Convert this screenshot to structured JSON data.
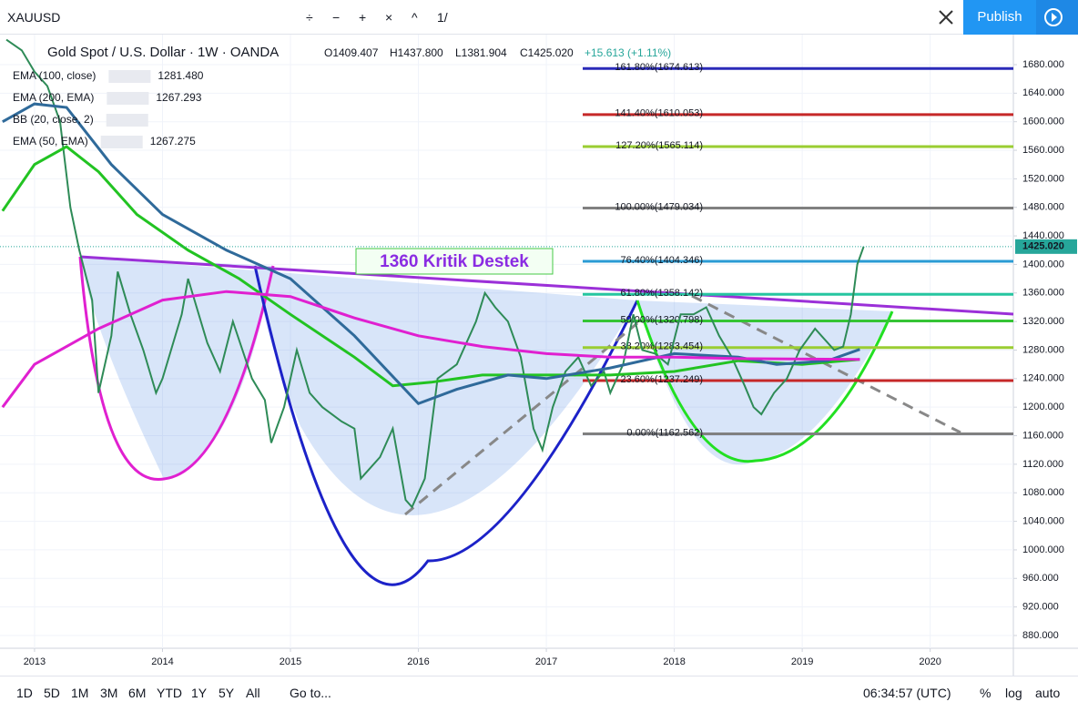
{
  "header": {
    "symbol": "XAUUSD",
    "tools": [
      "÷",
      "−",
      "+",
      "×",
      "^",
      "1/"
    ],
    "publish": "Publish"
  },
  "footer": {
    "ranges": [
      "1D",
      "5D",
      "1M",
      "3M",
      "6M",
      "YTD",
      "1Y",
      "5Y",
      "All"
    ],
    "goto": "Go to...",
    "clock": "06:34:57 (UTC)",
    "options": [
      "%",
      "log",
      "auto"
    ]
  },
  "chart_data": {
    "type": "line",
    "title": "Gold Spot / U.S. Dollar · 1W · OANDA",
    "ohlc": [
      "O1409.407",
      "H1437.800",
      "L1381.904",
      "C1425.020",
      "+15.613 (+1.11%)"
    ],
    "indicators": [
      {
        "name": "EMA (100, close)",
        "value": "1281.480",
        "color": "#2f6a9a"
      },
      {
        "name": "EMA (200, EMA)",
        "value": "1267.293",
        "color": "#e020d0"
      },
      {
        "name": "BB (20, close, 2)",
        "value": null,
        "color": "#888888"
      },
      {
        "name": "EMA (50, EMA)",
        "value": "1267.275",
        "color": "#22c322"
      }
    ],
    "annotation": "1360 Kritik Destek",
    "last_price": {
      "value": 1425.02,
      "label": "1425.020"
    },
    "xlim": [
      2012.73,
      2020.65
    ],
    "xticks": [
      2013,
      2014,
      2015,
      2016,
      2017,
      2018,
      2019,
      2020
    ],
    "ylim": [
      862.1,
      1722.1
    ],
    "yticks": [
      {
        "value": 880,
        "label": "880.000"
      },
      {
        "value": 920,
        "label": "920.000"
      },
      {
        "value": 960,
        "label": "960.000"
      },
      {
        "value": 1000,
        "label": "1000.000"
      },
      {
        "value": 1040,
        "label": "1040.000"
      },
      {
        "value": 1080,
        "label": "1080.000"
      },
      {
        "value": 1120,
        "label": "1120.000"
      },
      {
        "value": 1160,
        "label": "1160.000"
      },
      {
        "value": 1200,
        "label": "1200.000"
      },
      {
        "value": 1240,
        "label": "1240.000"
      },
      {
        "value": 1280,
        "label": "1280.000"
      },
      {
        "value": 1320,
        "label": "1320.000"
      },
      {
        "value": 1360,
        "label": "1360.000"
      },
      {
        "value": 1400,
        "label": "1400.000"
      },
      {
        "value": 1440,
        "label": "1440.000"
      },
      {
        "value": 1480,
        "label": "1480.000"
      },
      {
        "value": 1520,
        "label": "1520.000"
      },
      {
        "value": 1560,
        "label": "1560.000"
      },
      {
        "value": 1600,
        "label": "1600.000"
      },
      {
        "value": 1640,
        "label": "1640.000"
      },
      {
        "value": 1680,
        "label": "1680.000"
      }
    ],
    "series": [
      {
        "name": "XAUUSD",
        "color": "#2e8b57",
        "x": [
          2012.78,
          2012.9,
          2013.0,
          2013.1,
          2013.2,
          2013.28,
          2013.35,
          2013.45,
          2013.5,
          2013.6,
          2013.65,
          2013.75,
          2013.85,
          2013.95,
          2014.0,
          2014.15,
          2014.2,
          2014.35,
          2014.45,
          2014.55,
          2014.7,
          2014.8,
          2014.85,
          2014.95,
          2015.05,
          2015.15,
          2015.25,
          2015.4,
          2015.5,
          2015.55,
          2015.7,
          2015.8,
          2015.9,
          2015.95,
          2016.05,
          2016.15,
          2016.3,
          2016.45,
          2016.52,
          2016.6,
          2016.7,
          2016.8,
          2016.9,
          2016.97,
          2017.05,
          2017.15,
          2017.25,
          2017.35,
          2017.45,
          2017.5,
          2017.6,
          2017.68,
          2017.75,
          2017.85,
          2017.95,
          2018.05,
          2018.15,
          2018.25,
          2018.35,
          2018.45,
          2018.55,
          2018.62,
          2018.68,
          2018.78,
          2018.88,
          2018.98,
          2019.1,
          2019.15,
          2019.25,
          2019.32,
          2019.38,
          2019.43,
          2019.48
        ],
        "values": [
          1715,
          1700,
          1670,
          1650,
          1600,
          1480,
          1420,
          1350,
          1220,
          1300,
          1390,
          1330,
          1280,
          1220,
          1240,
          1330,
          1380,
          1290,
          1250,
          1320,
          1240,
          1210,
          1150,
          1200,
          1280,
          1220,
          1200,
          1180,
          1170,
          1100,
          1130,
          1170,
          1070,
          1060,
          1100,
          1240,
          1260,
          1320,
          1360,
          1340,
          1320,
          1270,
          1170,
          1140,
          1200,
          1250,
          1270,
          1230,
          1250,
          1220,
          1260,
          1330,
          1280,
          1275,
          1260,
          1330,
          1330,
          1340,
          1300,
          1270,
          1230,
          1200,
          1190,
          1220,
          1240,
          1280,
          1310,
          1300,
          1280,
          1285,
          1330,
          1400,
          1425
        ]
      },
      {
        "name": "EMA (50, EMA)",
        "color": "#22c322",
        "x": [
          2012.75,
          2013.0,
          2013.25,
          2013.5,
          2013.8,
          2014.2,
          2014.6,
          2015.0,
          2015.5,
          2015.8,
          2016.1,
          2016.5,
          2017.0,
          2017.5,
          2018.0,
          2018.5,
          2019.0,
          2019.45
        ],
        "values": [
          1475,
          1540,
          1565,
          1530,
          1470,
          1420,
          1380,
          1330,
          1270,
          1230,
          1235,
          1245,
          1245,
          1245,
          1250,
          1265,
          1260,
          1267
        ]
      },
      {
        "name": "EMA (100, close)",
        "color": "#2f6a9a",
        "x": [
          2012.75,
          2013.0,
          2013.25,
          2013.6,
          2014.0,
          2014.5,
          2015.0,
          2015.5,
          2016.0,
          2016.3,
          2016.7,
          2017.0,
          2017.5,
          2018.0,
          2018.5,
          2018.8,
          2019.2,
          2019.45
        ],
        "values": [
          1600,
          1625,
          1620,
          1540,
          1470,
          1420,
          1380,
          1300,
          1205,
          1225,
          1245,
          1240,
          1255,
          1275,
          1270,
          1260,
          1265,
          1281
        ]
      },
      {
        "name": "EMA (200, EMA)",
        "color": "#e020d0",
        "x": [
          2012.75,
          2013.0,
          2013.5,
          2014.0,
          2014.5,
          2015.0,
          2015.5,
          2016.0,
          2016.5,
          2017.0,
          2017.5,
          2018.0,
          2018.5,
          2019.45
        ],
        "values": [
          1200,
          1260,
          1310,
          1350,
          1362,
          1355,
          1325,
          1300,
          1285,
          1275,
          1270,
          1270,
          1268,
          1267
        ]
      }
    ],
    "levels": [
      {
        "label": "161.80%(1674.613)",
        "value": 1674.613,
        "color": "#2a2ab8"
      },
      {
        "label": "141.40%(1610.053)",
        "value": 1610.053,
        "color": "#c62828"
      },
      {
        "label": "127.20%(1565.114)",
        "value": 1565.114,
        "color": "#9acd32"
      },
      {
        "label": "100.00%(1479.034)",
        "value": 1479.034,
        "color": "#808080"
      },
      {
        "label": "76.40%(1404.346)",
        "value": 1404.346,
        "color": "#2a9bd4"
      },
      {
        "label": "61.80%(1358.142)",
        "value": 1358.142,
        "color": "#26c6a0"
      },
      {
        "label": "50.00%(1320.798)",
        "value": 1320.798,
        "color": "#35c435"
      },
      {
        "label": "38.20%(1283.454)",
        "value": 1283.454,
        "color": "#9acd32"
      },
      {
        "label": "23.60%(1237.249)",
        "value": 1237.249,
        "color": "#c62828"
      },
      {
        "label": "0.00%(1162.562)",
        "value": 1162.562,
        "color": "#808080"
      }
    ]
  }
}
